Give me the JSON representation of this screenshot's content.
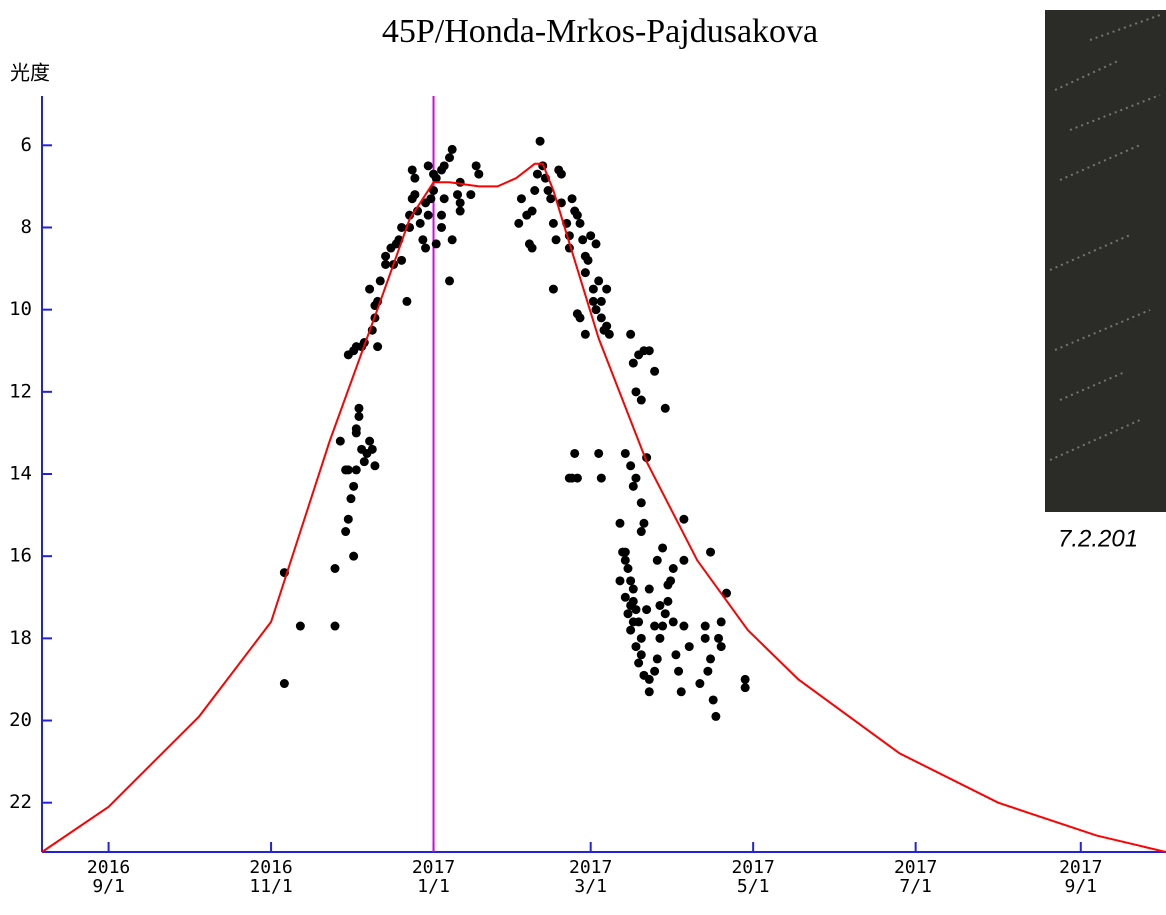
{
  "chart_data": {
    "type": "scatter",
    "title": "45P/Honda-Mrkos-Pajdusakova",
    "y_label": "光度",
    "photo_caption": "7.2.201",
    "xlim": [
      "2016-08-07",
      "2017-10-03"
    ],
    "ylim": [
      4.8,
      23.2
    ],
    "y_inverted": true,
    "yticks": [
      6,
      8,
      10,
      12,
      14,
      16,
      18,
      20,
      22
    ],
    "xticks": [
      {
        "value": "2016-09-01",
        "label": "2016\n9/1"
      },
      {
        "value": "2016-11-01",
        "label": "2016\n11/1"
      },
      {
        "value": "2017-01-01",
        "label": "2017\n1/1"
      },
      {
        "value": "2017-03-01",
        "label": "2017\n3/1"
      },
      {
        "value": "2017-05-01",
        "label": "2017\n5/1"
      },
      {
        "value": "2017-07-01",
        "label": "2017\n7/1"
      },
      {
        "value": "2017-09-01",
        "label": "2017\n9/1"
      }
    ],
    "axis_color": "#2222dd",
    "marker_x": "2017-01-01",
    "marker_color": "#dd00ee",
    "series": [
      {
        "type": "scatter",
        "color": "#000000",
        "x": [
          "2016-11-06",
          "2016-11-06",
          "2016-11-12",
          "2016-11-25",
          "2016-11-25",
          "2016-11-27",
          "2016-11-29",
          "2016-11-30",
          "2016-12-01",
          "2016-12-02",
          "2016-11-29",
          "2016-11-30",
          "2016-12-02",
          "2016-12-03",
          "2016-12-03",
          "2016-12-04",
          "2016-12-05",
          "2016-12-06",
          "2016-12-08",
          "2016-12-09",
          "2016-12-10",
          "2016-12-07",
          "2016-12-04",
          "2016-12-03",
          "2016-11-30",
          "2016-12-02",
          "2016-12-03",
          "2016-12-05",
          "2016-12-06",
          "2016-12-09",
          "2016-12-10",
          "2016-12-11",
          "2016-12-10",
          "2016-12-08",
          "2016-12-11",
          "2016-12-12",
          "2016-12-14",
          "2016-12-14",
          "2016-12-16",
          "2016-12-18",
          "2016-12-19",
          "2016-12-20",
          "2016-12-17",
          "2016-12-22",
          "2016-12-20",
          "2016-12-23",
          "2016-12-23",
          "2016-12-24",
          "2016-12-25",
          "2016-12-26",
          "2016-12-27",
          "2016-12-28",
          "2016-12-29",
          "2016-12-30",
          "2016-12-31",
          "2017-01-01",
          "2017-01-01",
          "2017-01-02",
          "2017-01-04",
          "2017-01-05",
          "2017-01-07",
          "2017-01-08",
          "2017-01-05",
          "2017-01-04",
          "2017-01-07",
          "2017-01-08",
          "2017-01-10",
          "2017-01-11",
          "2017-01-11",
          "2017-01-15",
          "2017-01-17",
          "2017-01-18",
          "2017-01-11",
          "2017-01-04",
          "2017-01-02",
          "2016-12-29",
          "2016-12-25",
          "2016-12-24",
          "2016-12-30",
          "2017-02-02",
          "2017-02-03",
          "2017-02-05",
          "2017-02-06",
          "2017-02-07",
          "2017-02-07",
          "2017-02-08",
          "2017-02-09",
          "2017-02-10",
          "2017-02-11",
          "2017-02-12",
          "2017-02-13",
          "2017-02-14",
          "2017-02-15",
          "2017-02-16",
          "2017-02-17",
          "2017-02-18",
          "2017-02-18",
          "2017-02-20",
          "2017-02-21",
          "2017-02-21",
          "2017-02-22",
          "2017-02-23",
          "2017-02-24",
          "2017-02-25",
          "2017-02-26",
          "2017-02-27",
          "2017-02-27",
          "2017-02-28",
          "2017-03-01",
          "2017-03-02",
          "2017-03-02",
          "2017-03-03",
          "2017-03-03",
          "2017-03-04",
          "2017-03-05",
          "2017-03-05",
          "2017-03-06",
          "2017-03-07",
          "2017-03-07",
          "2017-02-15",
          "2017-02-24",
          "2017-02-25",
          "2017-02-27",
          "2017-03-08",
          "2017-03-16",
          "2017-03-17",
          "2017-03-18",
          "2017-03-20",
          "2017-03-19",
          "2017-03-21",
          "2017-03-23",
          "2017-03-25",
          "2017-03-29",
          "2017-02-21",
          "2017-02-22",
          "2017-02-24",
          "2017-02-23",
          "2017-03-04",
          "2017-03-05",
          "2017-03-14",
          "2017-03-16",
          "2017-03-17",
          "2017-03-18",
          "2017-03-20",
          "2017-03-20",
          "2017-03-21",
          "2017-03-22",
          "2017-03-12",
          "2017-03-13",
          "2017-03-14",
          "2017-03-14",
          "2017-03-15",
          "2017-03-16",
          "2017-03-17",
          "2017-03-17",
          "2017-03-18",
          "2017-03-19",
          "2017-03-20",
          "2017-03-20",
          "2017-03-21",
          "2017-03-16",
          "2017-03-17",
          "2017-03-12",
          "2017-03-14",
          "2017-03-15",
          "2017-03-16",
          "2017-03-18",
          "2017-03-19",
          "2017-03-23",
          "2017-03-23",
          "2017-03-25",
          "2017-03-26",
          "2017-03-27",
          "2017-03-28",
          "2017-03-29",
          "2017-03-30",
          "2017-03-31",
          "2017-04-01",
          "2017-04-02",
          "2017-04-03",
          "2017-04-04",
          "2017-04-01",
          "2017-04-05",
          "2017-03-27",
          "2017-03-25",
          "2017-03-22",
          "2017-03-23",
          "2017-03-26",
          "2017-03-28",
          "2017-03-30",
          "2017-04-05",
          "2017-04-05",
          "2017-04-07",
          "2017-04-11",
          "2017-04-13",
          "2017-04-14",
          "2017-04-15",
          "2017-04-16",
          "2017-04-17",
          "2017-04-13",
          "2017-04-19",
          "2017-04-28",
          "2017-04-28",
          "2017-04-19",
          "2017-04-15",
          "2017-04-21",
          "2017-04-18"
        ],
        "values": [
          16.4,
          19.1,
          17.7,
          16.3,
          17.7,
          13.2,
          13.9,
          13.9,
          14.6,
          16.0,
          15.4,
          15.1,
          14.3,
          13.9,
          12.9,
          12.4,
          13.4,
          13.7,
          13.2,
          13.4,
          13.8,
          13.5,
          12.6,
          13.0,
          11.1,
          11.0,
          10.9,
          10.9,
          10.8,
          10.5,
          10.2,
          10.9,
          9.9,
          9.5,
          9.8,
          9.3,
          8.9,
          8.7,
          8.5,
          8.4,
          8.3,
          8.0,
          8.9,
          9.8,
          8.8,
          8.0,
          7.7,
          7.3,
          7.2,
          7.6,
          7.9,
          8.3,
          8.5,
          7.7,
          7.3,
          7.1,
          6.7,
          6.8,
          6.6,
          6.5,
          6.3,
          6.1,
          7.3,
          7.7,
          9.3,
          8.3,
          7.2,
          7.6,
          7.4,
          7.2,
          6.5,
          6.7,
          6.9,
          8.0,
          8.4,
          7.4,
          6.8,
          6.6,
          6.5,
          7.9,
          7.3,
          7.7,
          8.4,
          8.5,
          7.6,
          7.1,
          6.7,
          5.9,
          6.5,
          6.8,
          7.1,
          7.3,
          7.9,
          8.3,
          6.6,
          6.7,
          7.4,
          7.9,
          8.5,
          8.2,
          7.3,
          7.6,
          7.7,
          7.9,
          8.3,
          8.7,
          9.1,
          8.8,
          8.2,
          9.8,
          9.5,
          8.4,
          10.0,
          9.3,
          9.8,
          10.2,
          10.5,
          9.5,
          10.4,
          9.5,
          10.1,
          10.2,
          10.6,
          10.6,
          10.6,
          11.3,
          12.0,
          12.2,
          11.1,
          11.0,
          11.0,
          11.5,
          12.4,
          14.1,
          14.1,
          14.1,
          13.5,
          13.5,
          14.1,
          13.5,
          13.8,
          14.3,
          14.1,
          14.7,
          15.4,
          15.2,
          13.6,
          15.2,
          15.9,
          15.9,
          16.1,
          16.3,
          16.6,
          16.8,
          17.1,
          17.3,
          17.6,
          18.0,
          18.4,
          18.9,
          17.2,
          17.6,
          16.6,
          17.0,
          17.4,
          17.8,
          18.2,
          18.6,
          19.0,
          19.3,
          18.8,
          18.5,
          18.0,
          17.7,
          17.4,
          17.1,
          16.6,
          17.6,
          18.4,
          18.8,
          19.3,
          16.3,
          15.1,
          17.2,
          17.7,
          17.3,
          16.8,
          16.1,
          15.8,
          16.7,
          16.1,
          17.7,
          18.2,
          19.1,
          17.7,
          18.8,
          18.5,
          19.5,
          19.9,
          18.0,
          18.2,
          19.0,
          19.2,
          17.6,
          15.9,
          16.9,
          18.0
        ]
      },
      {
        "type": "line",
        "color": "#ff0000",
        "x": [
          "2016-08-07",
          "2016-09-01",
          "2016-10-05",
          "2016-11-01",
          "2016-11-23",
          "2016-12-12",
          "2016-12-23",
          "2017-01-01",
          "2017-01-07",
          "2017-01-18",
          "2017-01-25",
          "2017-02-01",
          "2017-02-08",
          "2017-02-11",
          "2017-02-15",
          "2017-02-23",
          "2017-03-04",
          "2017-03-22",
          "2017-04-10",
          "2017-04-29",
          "2017-05-18",
          "2017-06-25",
          "2017-08-01",
          "2017-09-07",
          "2017-10-03"
        ],
        "values": [
          23.2,
          22.1,
          19.9,
          17.6,
          13.2,
          9.8,
          7.8,
          6.9,
          6.9,
          7.0,
          7.0,
          6.8,
          6.45,
          6.45,
          7.1,
          8.8,
          10.7,
          13.7,
          16.1,
          17.8,
          19.0,
          20.8,
          22.0,
          22.8,
          23.2
        ]
      }
    ]
  }
}
